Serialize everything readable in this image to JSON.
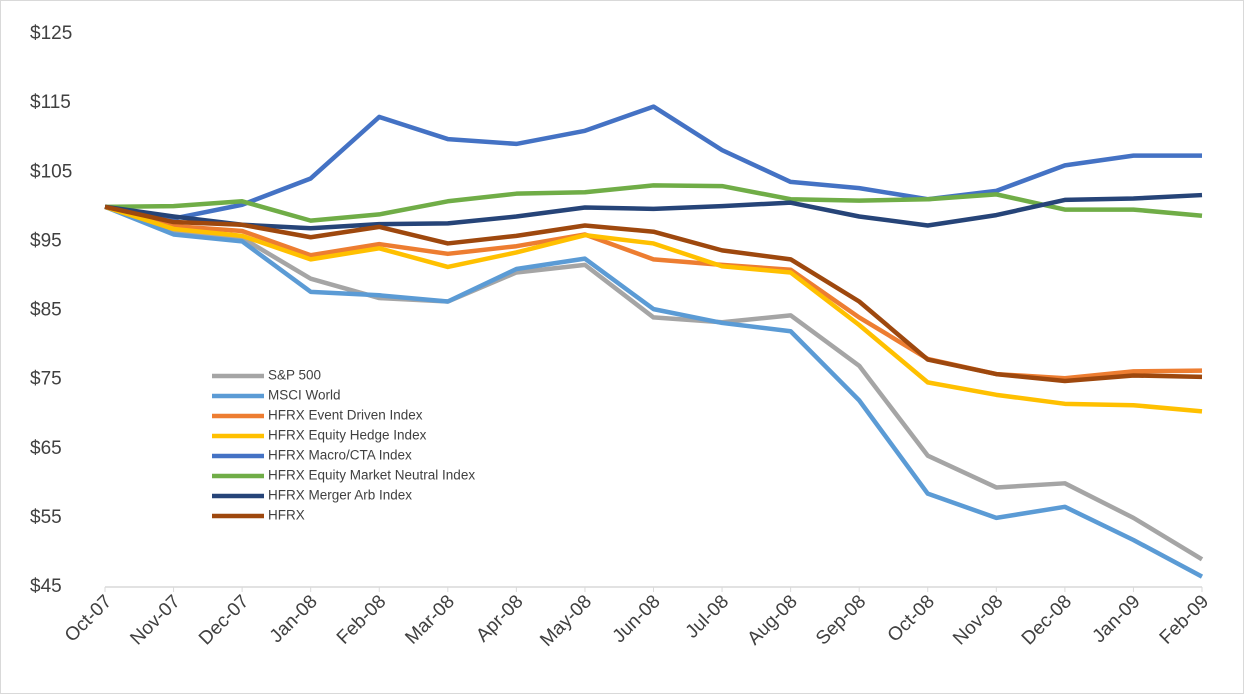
{
  "chart_data": {
    "type": "line",
    "categories": [
      "Oct-07",
      "Nov-07",
      "Dec-07",
      "Jan-08",
      "Feb-08",
      "Mar-08",
      "Apr-08",
      "May-08",
      "Jun-08",
      "Jul-08",
      "Aug-08",
      "Sep-08",
      "Oct-08",
      "Nov-08",
      "Dec-08",
      "Jan-09",
      "Feb-09"
    ],
    "series": [
      {
        "name": "S&P 500",
        "color": "#a5a5a5",
        "values": [
          100,
          96.5,
          95.5,
          89.6,
          86.8,
          86.3,
          90.5,
          91.6,
          84,
          83.3,
          84.3,
          77,
          64,
          59.4,
          60,
          55,
          49
        ]
      },
      {
        "name": "MSCI World",
        "color": "#5b9bd5",
        "values": [
          100,
          96,
          95,
          87.7,
          87.2,
          86.3,
          91,
          92.5,
          85.2,
          83.2,
          82,
          72,
          58.5,
          55,
          56.6,
          51.8,
          46.5
        ]
      },
      {
        "name": "HFRX Event Driven Index",
        "color": "#ed7d31",
        "values": [
          100,
          97.2,
          96.5,
          93,
          94.6,
          93.2,
          94.3,
          96,
          92.4,
          91.6,
          90.9,
          84,
          78,
          75.8,
          75.2,
          76.2,
          76.3
        ]
      },
      {
        "name": "HFRX Equity Hedge Index",
        "color": "#ffc000",
        "values": [
          100,
          96.8,
          95.8,
          92.4,
          94,
          91.3,
          93.4,
          95.9,
          94.7,
          91.4,
          90.5,
          82.9,
          74.6,
          72.8,
          71.5,
          71.3,
          70.4
        ]
      },
      {
        "name": "HFRX Macro/CTA Index",
        "color": "#4472c4",
        "values": [
          100,
          98.3,
          100.3,
          104.1,
          113,
          109.8,
          109.1,
          111,
          114.5,
          108.2,
          103.6,
          102.7,
          101.1,
          102.3,
          106,
          107.4,
          107.4
        ]
      },
      {
        "name": "HFRX Equity Market Neutral Index",
        "color": "#70ad47",
        "values": [
          100,
          100.1,
          100.8,
          98,
          98.9,
          100.8,
          101.9,
          102.1,
          103.1,
          103,
          101.1,
          100.9,
          101.1,
          101.8,
          99.6,
          99.6,
          98.7
        ]
      },
      {
        "name": "HFRX Merger Arb Index",
        "color": "#264478",
        "values": [
          100,
          98.6,
          97.4,
          96.9,
          97.5,
          97.6,
          98.6,
          99.9,
          99.7,
          100.1,
          100.6,
          98.6,
          97.3,
          98.8,
          101,
          101.2,
          101.7
        ]
      },
      {
        "name": "HFRX",
        "color": "#9e480e",
        "values": [
          100,
          97.8,
          97.4,
          95.6,
          97.1,
          94.7,
          95.8,
          97.3,
          96.4,
          93.7,
          92.4,
          86.3,
          77.9,
          75.8,
          74.8,
          75.6,
          75.4
        ]
      }
    ],
    "ylim": [
      45,
      125
    ],
    "yticks": [
      {
        "value": 45,
        "label": "$45"
      },
      {
        "value": 55,
        "label": "$55"
      },
      {
        "value": 65,
        "label": "$65"
      },
      {
        "value": 75,
        "label": "$75"
      },
      {
        "value": 85,
        "label": "$85"
      },
      {
        "value": 95,
        "label": "$95"
      },
      {
        "value": 105,
        "label": "$105"
      },
      {
        "value": 115,
        "label": "$115"
      },
      {
        "value": 125,
        "label": "$125"
      }
    ],
    "grid": false,
    "legend": "center-left"
  }
}
